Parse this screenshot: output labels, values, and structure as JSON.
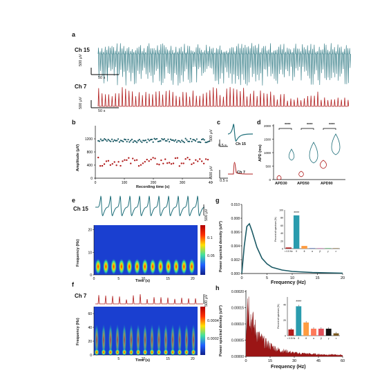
{
  "colors": {
    "teal": "#1f6f7a",
    "red": "#b01c1c",
    "tealdark": "#1a5964"
  },
  "panel_a": {
    "letter": "a",
    "ch15": "Ch 15",
    "ch7": "Ch 7",
    "scale_v": "500 μV",
    "scale_t": "50 s"
  },
  "panel_b": {
    "letter": "b",
    "ylabel": "Amplitude (μV)",
    "xlabel": "Recording time (s)",
    "yticks": [
      "0",
      "400",
      "800",
      "1200"
    ],
    "xticks": [
      "0",
      "100",
      "200",
      "300",
      "400"
    ]
  },
  "panel_c": {
    "letter": "c",
    "ch15": "Ch 15",
    "ch7": "Ch 7",
    "scale_v1": "500 μV",
    "scale_t1": "0.5 s",
    "scale_v2": "500 μV",
    "scale_t2": "0.5 s"
  },
  "panel_d": {
    "letter": "d",
    "ylabel": "APD (ms)",
    "yticks": [
      "0",
      "500",
      "1000",
      "1500",
      "2000"
    ],
    "xticks": [
      "APD30",
      "APD50",
      "APD90"
    ],
    "sig": [
      "****",
      "****",
      "****"
    ]
  },
  "panel_e": {
    "letter": "e",
    "ch": "Ch 15",
    "scale_v": "500 μV",
    "ylabel": "Frequency (Hz)",
    "xlabel": "Time (s)",
    "yticks": [
      "0",
      "10",
      "20"
    ],
    "xticks": [
      "0",
      "5",
      "10",
      "15",
      "20"
    ],
    "cbar": [
      "0.1",
      "0.05"
    ]
  },
  "panel_f": {
    "letter": "f",
    "ch": "Ch 7",
    "scale_v": "500 μV",
    "ylabel": "Frequency (Hz)",
    "xlabel": "Time (s)",
    "yticks": [
      "0",
      "20",
      "40",
      "60"
    ],
    "xticks": [
      "5",
      "10",
      "15",
      "20"
    ],
    "cbar": [
      "0.0004",
      "0.0002"
    ]
  },
  "panel_g": {
    "letter": "g",
    "ylabel": "Power spectral density (uV²)",
    "xlabel": "Frequency (Hz)",
    "yticks": [
      "0.000",
      "0.002",
      "0.004",
      "0.006",
      "0.008",
      "0.010"
    ],
    "xticks": [
      "0",
      "5",
      "10",
      "15",
      "20"
    ],
    "inset_ylabel": "Percent of spectrum (%)",
    "inset_yticks": [
      "0",
      "20",
      "40",
      "60",
      "80",
      "100"
    ],
    "inset_xticks": [
      "< 0.5 Hz",
      "δ",
      "θ",
      "α",
      "β",
      "γ",
      "ε"
    ],
    "inset_sig": "****"
  },
  "panel_h": {
    "letter": "h",
    "ylabel": "Power spectral density (uV²)",
    "xlabel": "Frequency (Hz)",
    "yticks": [
      "0.00000",
      "0.00005",
      "0.00010",
      "0.00015",
      "0.00020"
    ],
    "xticks": [
      "0",
      "15",
      "30",
      "45",
      "60"
    ],
    "inset_ylabel": "Percent of spectrum (%)",
    "inset_yticks": [
      "0",
      "20",
      "40",
      "60",
      "80"
    ],
    "inset_xticks": [
      "< 0.5 Hz",
      "δ",
      "θ",
      "α",
      "β",
      "γ",
      "ε"
    ],
    "inset_sig": "****"
  },
  "chart_data": [
    {
      "type": "scatter",
      "panel": "b",
      "xlabel": "Recording time (s)",
      "ylabel": "Amplitude (μV)",
      "xlim": [
        0,
        400
      ],
      "ylim": [
        0,
        1600
      ],
      "series": [
        {
          "name": "Ch 15",
          "approx_mean": 1150
        },
        {
          "name": "Ch 7",
          "approx_mean": 500
        }
      ]
    },
    {
      "type": "line",
      "panel": "g",
      "xlabel": "Frequency (Hz)",
      "ylabel": "Power spectral density (uV²)",
      "xlim": [
        0,
        20
      ],
      "ylim": [
        0,
        0.01
      ],
      "x": [
        0,
        0.5,
        1,
        1.5,
        2,
        3,
        4,
        5,
        6,
        8,
        10,
        14,
        20
      ],
      "y": [
        0,
        0.004,
        0.0068,
        0.0072,
        0.0062,
        0.0038,
        0.0022,
        0.0014,
        0.0009,
        0.0005,
        0.0003,
        0.00015,
        5e-05
      ]
    },
    {
      "type": "bar",
      "panel": "g-inset",
      "categories": [
        "< 0.5 Hz",
        "δ",
        "θ",
        "α",
        "β",
        "γ",
        "ε"
      ],
      "values": [
        3,
        86,
        7,
        1,
        1,
        1,
        1
      ],
      "ylim": [
        0,
        100
      ]
    },
    {
      "type": "line",
      "panel": "h",
      "xlabel": "Frequency (Hz)",
      "ylabel": "Power spectral density (uV²)",
      "xlim": [
        0,
        60
      ],
      "ylim": [
        0,
        0.0002
      ],
      "x": [
        0,
        1,
        2,
        3,
        5,
        8,
        12,
        20,
        30,
        45,
        60
      ],
      "y": [
        8e-05,
        0.00018,
        0.00015,
        0.00012,
        9e-05,
        6e-05,
        4e-05,
        2e-05,
        1e-05,
        6e-06,
        4e-06
      ]
    },
    {
      "type": "bar",
      "panel": "h-inset",
      "categories": [
        "< 0.5 Hz",
        "δ",
        "θ",
        "α",
        "β",
        "γ",
        "ε"
      ],
      "values": [
        8,
        38,
        17,
        9,
        9,
        9,
        3
      ],
      "ylim": [
        0,
        50
      ]
    }
  ]
}
